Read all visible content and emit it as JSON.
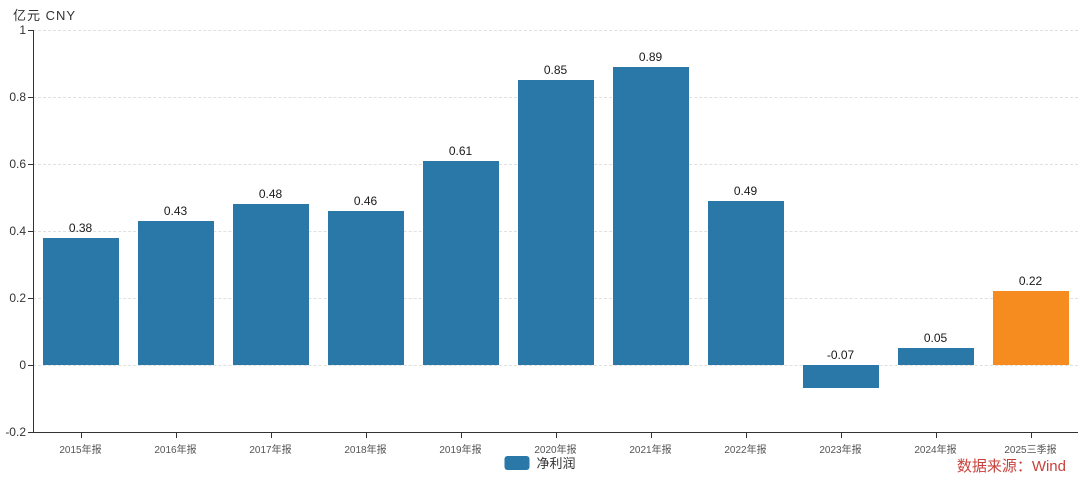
{
  "header": {
    "unit_label": "亿元 CNY"
  },
  "legend": {
    "label": "净利润"
  },
  "source": {
    "text": "数据来源：Wind"
  },
  "colors": {
    "bar_blue": "#2978a8",
    "bar_orange": "#f68b1f",
    "axis": "#333333",
    "grid": "#e0e0e0",
    "source_red": "#c8423c"
  },
  "chart_data": {
    "type": "bar",
    "title": "",
    "xlabel": "",
    "ylabel": "亿元 CNY",
    "categories": [
      "2015年报",
      "2016年报",
      "2017年报",
      "2018年报",
      "2019年报",
      "2020年报",
      "2021年报",
      "2022年报",
      "2023年报",
      "2024年报",
      "2025三季报"
    ],
    "series": [
      {
        "name": "净利润",
        "values": [
          0.38,
          0.43,
          0.48,
          0.46,
          0.61,
          0.85,
          0.89,
          0.49,
          -0.07,
          0.05,
          0.22
        ]
      }
    ],
    "value_labels": [
      "0.38",
      "0.43",
      "0.48",
      "0.46",
      "0.61",
      "0.85",
      "0.89",
      "0.49",
      "-0.07",
      "0.05",
      "0.22"
    ],
    "bar_colors": [
      "#2978a8",
      "#2978a8",
      "#2978a8",
      "#2978a8",
      "#2978a8",
      "#2978a8",
      "#2978a8",
      "#2978a8",
      "#2978a8",
      "#2978a8",
      "#f68b1f"
    ],
    "ylim": [
      -0.2,
      1
    ],
    "ytick_labels": [
      "1",
      "0.8",
      "0.6",
      "0.4",
      "0.2",
      "0",
      "-0.2"
    ],
    "yticks": [
      1,
      0.8,
      0.6,
      0.4,
      0.2,
      0,
      -0.2
    ],
    "grid": true,
    "grid_style": "dashed",
    "legend_position": "bottom",
    "legend_entries": [
      "净利润"
    ]
  }
}
